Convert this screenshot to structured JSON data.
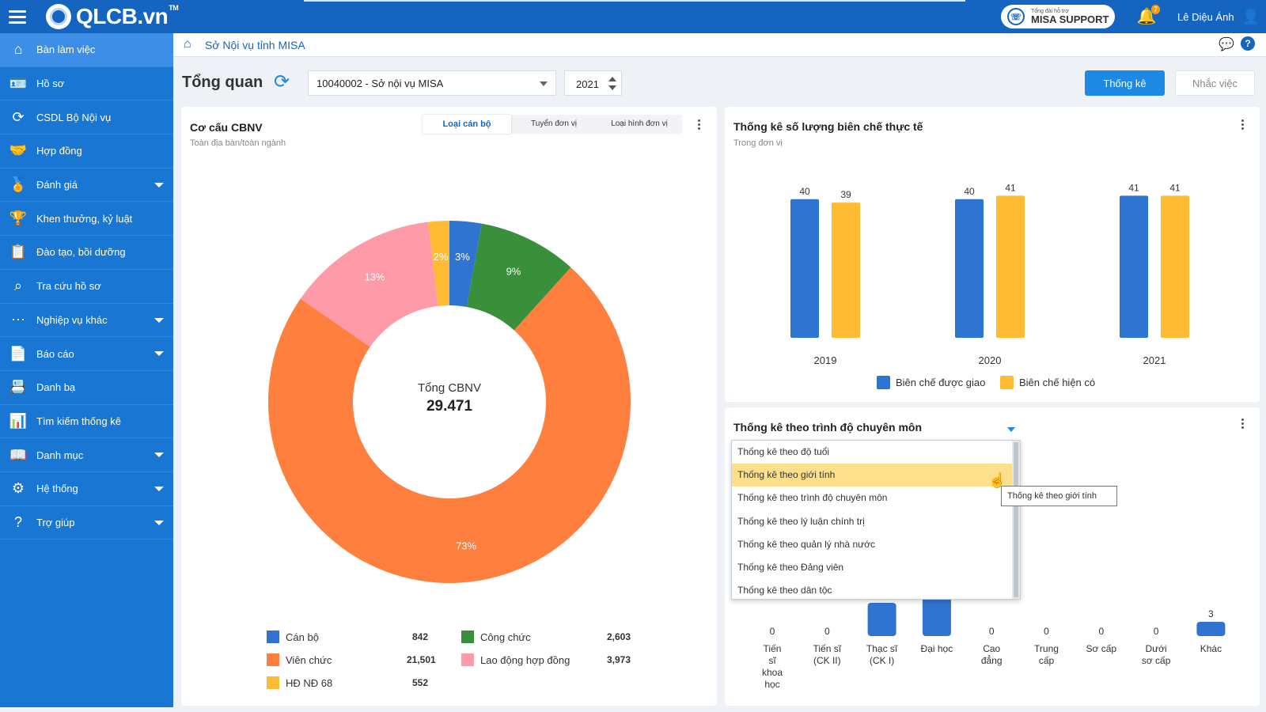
{
  "topbar": {
    "logo": "QLCB.vn",
    "logo_tm": "TM",
    "support_small": "Tổng đài hỗ trợ",
    "support_label": "MISA SUPPORT",
    "notification_count": "7",
    "user_name": "Lê Diệu Ánh"
  },
  "sidebar": {
    "items": [
      {
        "label": "Bàn làm việc",
        "icon": "home-icon",
        "has_submenu": false,
        "active": true
      },
      {
        "label": "Hồ sơ",
        "icon": "profile-card-icon",
        "has_submenu": false
      },
      {
        "label": "CSDL Bộ Nội vụ",
        "icon": "sync-icon",
        "has_submenu": false
      },
      {
        "label": "Hợp đồng",
        "icon": "handshake-icon",
        "has_submenu": false
      },
      {
        "label": "Đánh giá",
        "icon": "medal-icon",
        "has_submenu": true
      },
      {
        "label": "Khen thưởng, kỷ luật",
        "icon": "trophy-icon",
        "has_submenu": false
      },
      {
        "label": "Đào tạo, bồi dưỡng",
        "icon": "training-icon",
        "has_submenu": false
      },
      {
        "label": "Tra cứu hồ sơ",
        "icon": "search-icon",
        "has_submenu": false
      },
      {
        "label": "Nghiệp vụ khác",
        "icon": "more-icon",
        "has_submenu": true
      },
      {
        "label": "Báo cáo",
        "icon": "report-icon",
        "has_submenu": true
      },
      {
        "label": "Danh bạ",
        "icon": "contacts-icon",
        "has_submenu": false
      },
      {
        "label": "Tìm kiếm thống kê",
        "icon": "bar-chart-icon",
        "has_submenu": false
      },
      {
        "label": "Danh mục",
        "icon": "book-icon",
        "has_submenu": true
      },
      {
        "label": "Hệ thống",
        "icon": "gear-icon",
        "has_submenu": true
      },
      {
        "label": "Trợ giúp",
        "icon": "help-icon",
        "has_submenu": true
      }
    ]
  },
  "breadcrumb": {
    "label": "Sở Nội vụ tỉnh MISA"
  },
  "header": {
    "title": "Tổng quan",
    "unit_value": "10040002 - Sở nội vụ MISA",
    "year_value": "2021",
    "btn_stat": "Thống kê",
    "btn_remind": "Nhắc việc"
  },
  "structure_card": {
    "title": "Cơ cấu CBNV",
    "subtitle": "Toàn địa bàn/toàn ngành",
    "tabs": [
      "Loại cán bộ",
      "Tuyển đơn vị",
      "Loại hình đơn vị"
    ],
    "active_tab": 0,
    "center_label": "Tổng CBNV",
    "center_value": "29.471",
    "legend": [
      {
        "name": "Cán bộ",
        "value": "842"
      },
      {
        "name": "Công chức",
        "value": "2,603"
      },
      {
        "name": "Viên chức",
        "value": "21,501"
      },
      {
        "name": "Lao động hợp đồng",
        "value": "3,973"
      },
      {
        "name": "HĐ NĐ 68",
        "value": "552"
      }
    ]
  },
  "staffing_card": {
    "title": "Thống kê số lượng biên chế thực tế",
    "subtitle": "Trong đơn vị"
  },
  "level_card": {
    "title": "Thống kê theo trình độ chuyên môn",
    "dropdown_options": [
      "Thống kê theo độ tuổi",
      "Thống kê theo giới tính",
      "Thống kê theo trình độ chuyên môn",
      "Thống kê theo lý luận chính trị",
      "Thống kê theo quản lý nhà nước",
      "Thống kê theo Đảng viên",
      "Thống kê theo dân tộc"
    ],
    "hover_index": 1,
    "tooltip": "Thống kê theo giới tính"
  },
  "chart_data": [
    {
      "type": "pie",
      "donut": true,
      "labels": [
        "Cán bộ",
        "Công chức",
        "Viên chức",
        "Lao động hợp đồng",
        "HĐ NĐ 68"
      ],
      "values": [
        842,
        2603,
        21501,
        3973,
        552
      ],
      "percent_labels": [
        "3%",
        "9%",
        "73%",
        "13%",
        "2%"
      ],
      "slice_order": [
        0,
        1,
        2,
        3,
        4
      ],
      "colors": [
        "#2f74d0",
        "#3a8f3a",
        "#ff7f3f",
        "#ff9aa8",
        "#ffbb33"
      ],
      "legend_placement": "bottom"
    },
    {
      "type": "bar",
      "categories": [
        "2019",
        "2020",
        "2021"
      ],
      "series": [
        {
          "name": "Biên chế được giao",
          "values": [
            40,
            40,
            41
          ],
          "color": "#2f74d0"
        },
        {
          "name": "Biên chế hiện có",
          "values": [
            39,
            41,
            41
          ],
          "color": "#ffbb33"
        }
      ],
      "legend_placement": "bottom"
    },
    {
      "type": "bar",
      "categories": [
        "Tiến sĩ khoa học",
        "Tiến sĩ (CK II)",
        "Thạc sĩ (CK I)",
        "Đại học",
        "Cao đẳng",
        "Trung cấp",
        "Sơ cấp",
        "Dưới sơ cấp",
        "Khác"
      ],
      "category_lines": [
        [
          "Tiến",
          "sĩ",
          "khoa",
          "học"
        ],
        [
          "Tiến sĩ",
          "(CK II)"
        ],
        [
          "Thạc sĩ",
          "(CK I)"
        ],
        [
          "Đại học"
        ],
        [
          "Cao",
          "đẳng"
        ],
        [
          "Trung",
          "cấp"
        ],
        [
          "Sơ cấp"
        ],
        [
          "Dưới",
          "sơ cấp"
        ],
        [
          "Khác"
        ]
      ],
      "values": [
        0,
        0,
        7,
        null,
        0,
        0,
        0,
        0,
        3
      ],
      "value_labels": [
        "0",
        "0",
        "",
        "",
        "0",
        "0",
        "0",
        "0",
        "3"
      ],
      "color": "#2f74d0"
    }
  ]
}
